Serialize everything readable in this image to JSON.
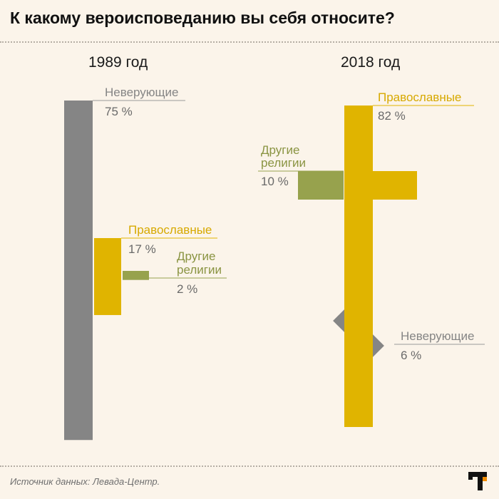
{
  "title": "К какому вероисповеданию вы себя относите?",
  "source": "Источник данных: Левада-Центр.",
  "colors": {
    "background": "#FBF4EA",
    "gray": "#858585",
    "gold": "#E0B400",
    "olive": "#97A24D"
  },
  "chart_data": [
    {
      "type": "bar",
      "year": "1989 год",
      "unit": "%",
      "series": [
        {
          "name": "Неверующие",
          "value": 75,
          "label": "75 %",
          "color": "#858585"
        },
        {
          "name": "Православные",
          "value": 17,
          "label": "17 %",
          "color": "#E0B400"
        },
        {
          "name": "Другие религии",
          "value": 2,
          "label": "2 %",
          "color": "#97A24D"
        }
      ]
    },
    {
      "type": "bar",
      "year": "2018 год",
      "unit": "%",
      "series": [
        {
          "name": "Православные",
          "value": 82,
          "label": "82 %",
          "color": "#E0B400"
        },
        {
          "name": "Другие религии",
          "value": 10,
          "label": "10 %",
          "color": "#97A24D"
        },
        {
          "name": "Неверующие",
          "value": 6,
          "label": "6 %",
          "color": "#858585"
        }
      ]
    }
  ]
}
